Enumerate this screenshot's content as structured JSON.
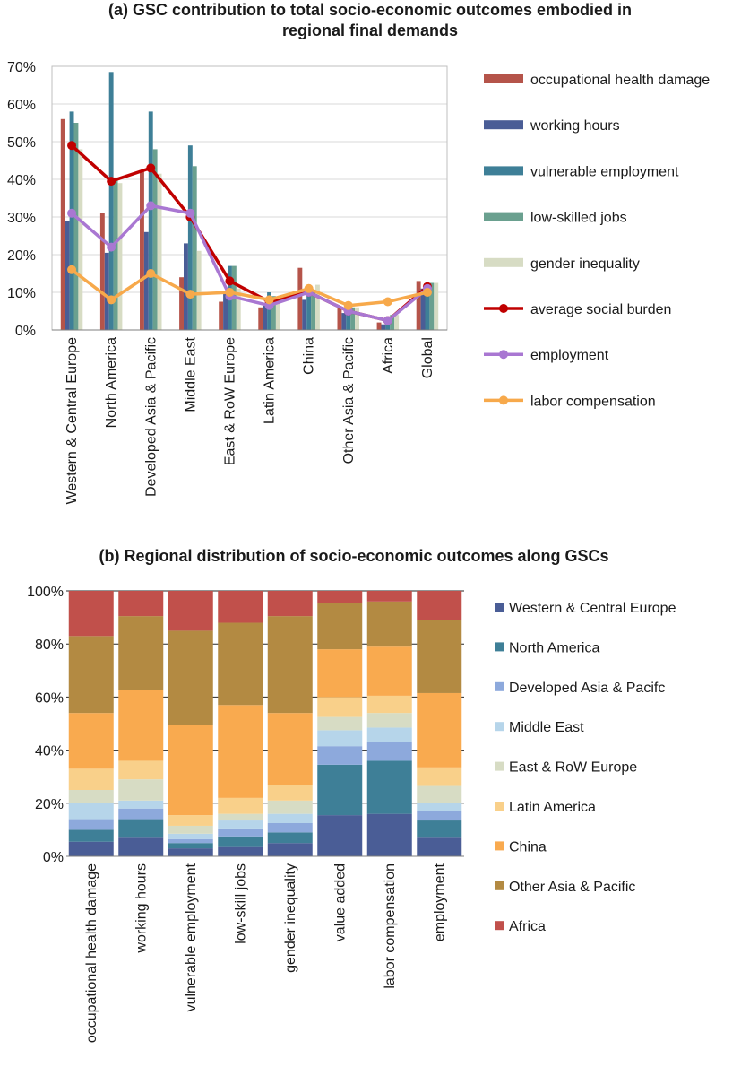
{
  "figure": {
    "chart_a_title_line1": "(a) GSC contribution to total socio-economic outcomes embodied in",
    "chart_a_title_line2": "regional final demands",
    "chart_b_title": "(b) Regional distribution of socio-economic outcomes along GSCs"
  },
  "chart_data": [
    {
      "type": "bar",
      "categories": [
        "Western & Central Europe",
        "North America",
        "Developed Asia & Pacific",
        "Middle East",
        "East & RoW Europe",
        "Latin America",
        "China",
        "Other Asia & Pacific",
        "Africa",
        "Global"
      ],
      "ylim": [
        0,
        70
      ],
      "yticks": [
        "0%",
        "10%",
        "20%",
        "30%",
        "40%",
        "50%",
        "60%",
        "70%"
      ],
      "series": [
        {
          "name": "occupational health damage",
          "kind": "bar",
          "color": "#b5544a",
          "values": [
            56,
            31,
            42,
            14,
            7.5,
            6,
            16.5,
            6,
            2,
            13
          ]
        },
        {
          "name": "working hours",
          "kind": "bar",
          "color": "#4a5d96",
          "values": [
            29,
            20.5,
            26,
            23,
            10,
            6.5,
            8,
            4.5,
            1.5,
            11
          ]
        },
        {
          "name": "vulnerable employment",
          "kind": "bar",
          "color": "#3e7f97",
          "values": [
            58,
            68.5,
            58,
            49,
            17,
            10,
            11,
            5,
            2.5,
            12
          ]
        },
        {
          "name": "low-skilled jobs",
          "kind": "bar",
          "color": "#6aa08f",
          "values": [
            55,
            40.5,
            48,
            43.5,
            17,
            9,
            10,
            6,
            4,
            12.5
          ]
        },
        {
          "name": "gender inequality",
          "kind": "bar",
          "color": "#d7dcc4",
          "values": [
            48,
            39,
            41.5,
            21,
            11,
            8,
            12,
            6,
            4,
            12.5
          ]
        },
        {
          "name": "average social burden",
          "kind": "line",
          "color": "#c00000",
          "values": [
            49,
            39.5,
            43,
            30,
            13,
            7.5,
            10,
            5,
            2.5,
            11.5
          ]
        },
        {
          "name": "employment",
          "kind": "line",
          "color": "#a977d2",
          "values": [
            31,
            22,
            33,
            31,
            9,
            6.5,
            10,
            5,
            2.5,
            11
          ]
        },
        {
          "name": "labor compensation",
          "kind": "line",
          "color": "#f7a94b",
          "values": [
            16,
            8,
            15,
            9.5,
            10,
            8,
            11,
            6.5,
            7.5,
            10
          ]
        }
      ]
    },
    {
      "type": "bar",
      "stacked": true,
      "categories": [
        "occupational health damage",
        "working hours",
        "vulnerable employment",
        "low-skill jobs",
        "gender inequality",
        "value added",
        "labor compensation",
        "employment"
      ],
      "ylim": [
        0,
        100
      ],
      "yticks": [
        "0%",
        "20%",
        "40%",
        "60%",
        "80%",
        "100%"
      ],
      "series": [
        {
          "name": "Western & Central Europe",
          "color": "#4a5d96",
          "values": [
            5.5,
            7,
            3,
            3.5,
            5,
            15.5,
            16,
            7
          ]
        },
        {
          "name": "North America",
          "color": "#3e7f97",
          "values": [
            4.5,
            7,
            2,
            4,
            4,
            19,
            20,
            6.5
          ]
        },
        {
          "name": "Developed Asia & Pacifc",
          "color": "#8da9dc",
          "values": [
            4,
            4,
            1.5,
            3,
            3.5,
            7,
            7,
            3.5
          ]
        },
        {
          "name": "Middle East",
          "color": "#b6d5ea",
          "values": [
            6,
            3,
            2,
            3,
            3.5,
            6,
            5.5,
            3
          ]
        },
        {
          "name": "East & RoW Europe",
          "color": "#d7dcc4",
          "values": [
            5,
            8,
            3,
            2.5,
            5,
            5,
            5.5,
            6.5
          ]
        },
        {
          "name": "Latin America",
          "color": "#f9d08a",
          "values": [
            8,
            7,
            4,
            6,
            6,
            7.5,
            6.5,
            7
          ]
        },
        {
          "name": "China",
          "color": "#f9aa4f",
          "values": [
            21,
            26.5,
            34,
            35,
            27,
            18,
            18.5,
            28
          ]
        },
        {
          "name": "Other Asia & Pacific",
          "color": "#b38a42",
          "values": [
            29,
            28,
            35.5,
            31,
            36.5,
            17.5,
            17,
            27.5
          ]
        },
        {
          "name": "Africa",
          "color": "#c1504b",
          "values": [
            17,
            9.5,
            15,
            12,
            9.5,
            4.5,
            4,
            11
          ]
        }
      ]
    }
  ]
}
